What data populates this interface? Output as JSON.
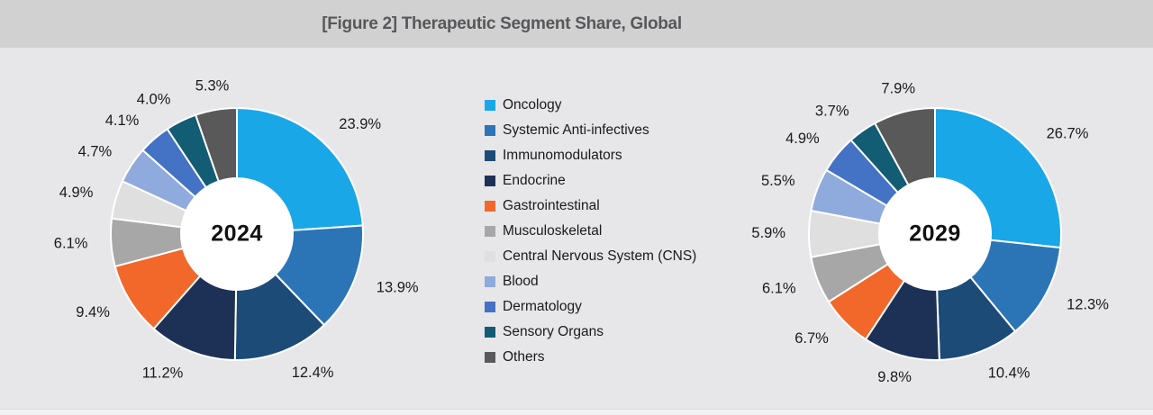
{
  "header": {
    "title": "[Figure 2] Therapeutic Segment Share, Global"
  },
  "legend": {
    "items": [
      {
        "label": "Oncology",
        "color": "#1AA7E8"
      },
      {
        "label": "Systemic Anti-infectives",
        "color": "#2B75B7"
      },
      {
        "label": "Immunomodulators",
        "color": "#1D4B78"
      },
      {
        "label": "Endocrine",
        "color": "#1D3156"
      },
      {
        "label": "Gastrointestinal",
        "color": "#F2682A"
      },
      {
        "label": "Musculoskeletal",
        "color": "#A7A7A7"
      },
      {
        "label": "Central Nervous System (CNS)",
        "color": "#DFDFE0"
      },
      {
        "label": "Blood",
        "color": "#8FAADC"
      },
      {
        "label": "Dermatology",
        "color": "#4472C4"
      },
      {
        "label": "Sensory Organs",
        "color": "#125C74"
      },
      {
        "label": "Others",
        "color": "#595959"
      }
    ]
  },
  "chart_data": [
    {
      "type": "pie",
      "donut": true,
      "title": "2024",
      "categories": [
        "Oncology",
        "Systemic Anti-infectives",
        "Immunomodulators",
        "Endocrine",
        "Gastrointestinal",
        "Musculoskeletal",
        "Central Nervous System (CNS)",
        "Blood",
        "Dermatology",
        "Sensory Organs",
        "Others"
      ],
      "values": [
        23.9,
        13.9,
        12.4,
        11.2,
        9.4,
        6.1,
        4.9,
        4.7,
        4.1,
        4.0,
        5.3
      ],
      "labels": [
        "23.9%",
        "13.9%",
        "12.4%",
        "11.2%",
        "9.4%",
        "6.1%",
        "4.9%",
        "4.7%",
        "4.1%",
        "4.0%",
        "5.3%"
      ],
      "colors": [
        "#1AA7E8",
        "#2B75B7",
        "#1D4B78",
        "#1D3156",
        "#F2682A",
        "#A7A7A7",
        "#DFDFE0",
        "#8FAADC",
        "#4472C4",
        "#125C74",
        "#595959"
      ],
      "start_angle_deg": 0,
      "direction": "clockwise",
      "legend_position": "center-shared"
    },
    {
      "type": "pie",
      "donut": true,
      "title": "2029",
      "categories": [
        "Oncology",
        "Systemic Anti-infectives",
        "Immunomodulators",
        "Endocrine",
        "Gastrointestinal",
        "Musculoskeletal",
        "Central Nervous System (CNS)",
        "Blood",
        "Dermatology",
        "Sensory Organs",
        "Others"
      ],
      "values": [
        26.7,
        12.3,
        10.4,
        9.8,
        6.7,
        6.1,
        5.9,
        5.5,
        4.9,
        3.7,
        7.9
      ],
      "labels": [
        "26.7%",
        "12.3%",
        "10.4%",
        "9.8%",
        "6.7%",
        "6.1%",
        "5.9%",
        "5.5%",
        "4.9%",
        "3.7%",
        "7.9%"
      ],
      "colors": [
        "#1AA7E8",
        "#2B75B7",
        "#1D4B78",
        "#1D3156",
        "#F2682A",
        "#A7A7A7",
        "#DFDFE0",
        "#8FAADC",
        "#4472C4",
        "#125C74",
        "#595959"
      ],
      "start_angle_deg": 0,
      "direction": "clockwise",
      "legend_position": "center-shared"
    }
  ],
  "colors": {
    "page_background": "#E7E7E9",
    "title_bar_background": "#D1D1D2",
    "title_text": "#58585A",
    "slice_label_text": "#1A1A1A",
    "donut_hole": "#FFFFFF",
    "slice_border": "#FFFFFF"
  }
}
